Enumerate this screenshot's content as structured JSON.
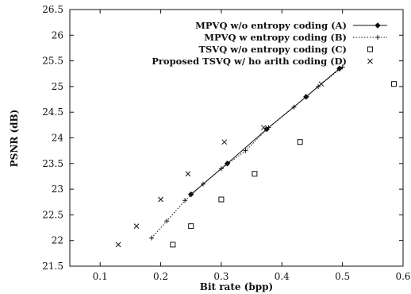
{
  "chart_data": {
    "type": "line",
    "title": "",
    "xlabel": "Bit rate (bpp)",
    "ylabel": "PSNR (dB)",
    "xlim": [
      0.05,
      0.6
    ],
    "ylim": [
      21.5,
      26.5
    ],
    "xticks": [
      0.1,
      0.2,
      0.3,
      0.4,
      0.5,
      0.6
    ],
    "yticks": [
      21.5,
      22,
      22.5,
      23,
      23.5,
      24,
      24.5,
      25,
      25.5,
      26,
      26.5
    ],
    "xtick_labels": [
      "0.1",
      "0.2",
      "0.3",
      "0.4",
      "0.5",
      "0.6"
    ],
    "ytick_labels": [
      "21.5",
      "22",
      "22.5",
      "23",
      "23.5",
      "24",
      "24.5",
      "25",
      "25.5",
      "26",
      "26.5"
    ],
    "grid": false,
    "legend_position": "top-right",
    "series": [
      {
        "name": "MPVQ w/o entropy coding (A)",
        "marker": "diamond",
        "line": "solid",
        "color": "#111111",
        "x": [
          0.25,
          0.31,
          0.375,
          0.44,
          0.495
        ],
        "y": [
          22.9,
          23.5,
          24.17,
          24.8,
          25.35
        ]
      },
      {
        "name": "MPVQ w entropy coding (B)",
        "marker": "plus",
        "line": "dotted",
        "color": "#111111",
        "x": [
          0.185,
          0.21,
          0.24,
          0.27,
          0.3,
          0.34,
          0.378,
          0.42,
          0.46,
          0.5
        ],
        "y": [
          22.05,
          22.38,
          22.78,
          23.1,
          23.4,
          23.75,
          24.2,
          24.6,
          25.0,
          25.38
        ]
      },
      {
        "name": "TSVQ w/o entropy coding (C)",
        "marker": "square",
        "line": "none",
        "color": "#111111",
        "x": [
          0.22,
          0.25,
          0.3,
          0.355,
          0.43,
          0.585
        ],
        "y": [
          21.92,
          22.28,
          22.8,
          23.3,
          23.92,
          25.05
        ]
      },
      {
        "name": "Proposed TSVQ w/ ho arith coding (D)",
        "marker": "x",
        "line": "none",
        "color": "#111111",
        "x": [
          0.13,
          0.16,
          0.2,
          0.245,
          0.305,
          0.37,
          0.465
        ],
        "y": [
          21.92,
          22.28,
          22.8,
          23.3,
          23.92,
          24.2,
          25.05
        ]
      }
    ]
  }
}
